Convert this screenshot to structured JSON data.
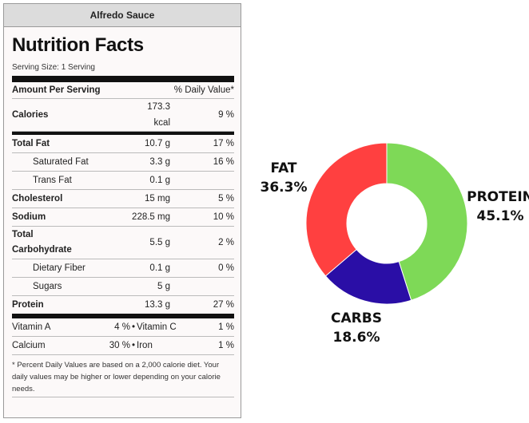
{
  "card_title": "Alfredo Sauce",
  "heading": "Nutrition Facts",
  "serving_size": "Serving Size: 1 Serving",
  "amount_per_serving": "Amount Per Serving",
  "daily_value_header": "% Daily Value*",
  "calories": {
    "label": "Calories",
    "amount_value": "173.3",
    "amount_unit": "kcal",
    "pct": "9 %"
  },
  "nutrients": [
    {
      "label": "Total Fat",
      "amount": "10.7 g",
      "pct": "17 %"
    },
    {
      "label": "Saturated Fat",
      "amount": "3.3 g",
      "pct": "16 %"
    },
    {
      "label": "Trans Fat",
      "amount": "0.1 g",
      "pct": ""
    },
    {
      "label": "Cholesterol",
      "amount": "15 mg",
      "pct": "5 %"
    },
    {
      "label": "Sodium",
      "amount": "228.5 mg",
      "pct": "10 %"
    },
    {
      "label_line1": "Total",
      "label_line2": "Carbohydrate",
      "amount": "5.5 g",
      "pct": "2 %"
    },
    {
      "label": "Dietary Fiber",
      "amount": "0.1 g",
      "pct": "0 %"
    },
    {
      "label": "Sugars",
      "amount": "5 g",
      "pct": ""
    },
    {
      "label": "Protein",
      "amount": "13.3 g",
      "pct": "27 %"
    }
  ],
  "vitamins": [
    {
      "label1": "Vitamin A",
      "pct1": "4 %",
      "label2": "Vitamin C",
      "pct2": "1 %"
    },
    {
      "label1": "Calcium",
      "pct1": "30 %",
      "label2": "Iron",
      "pct2": "1 %"
    }
  ],
  "bullet": "•",
  "footnote": "* Percent Daily Values are based on a 2,000 calorie diet. Your daily values may be higher or lower depending on your calorie needs.",
  "chart_data": {
    "type": "pie",
    "style": "donut",
    "title": "",
    "categories": [
      "Protein",
      "Carbs",
      "Fat"
    ],
    "values": [
      45.1,
      18.6,
      36.3
    ],
    "labels": [
      "Protein",
      "Carbs",
      "Fat"
    ],
    "display_labels": [
      "PROTEIN",
      "CARBS",
      "FAT"
    ],
    "percent_labels": [
      "45.1%",
      "18.6%",
      "36.3%"
    ],
    "colors": [
      "#7ed957",
      "#2a0ea6",
      "#ff4040"
    ],
    "start_angle": "12 o'clock, clockwise"
  }
}
